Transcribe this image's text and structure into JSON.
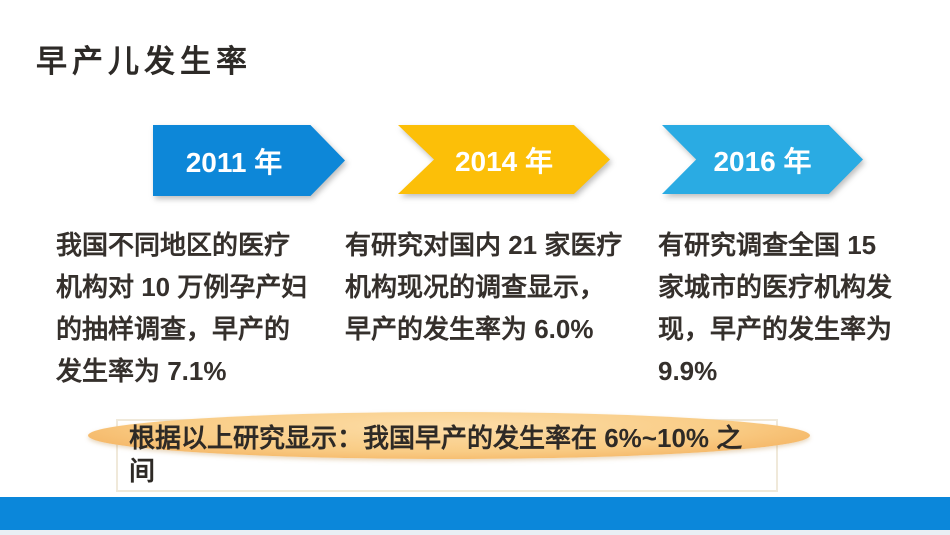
{
  "title": "早产儿发生率",
  "timeline": [
    {
      "year": "2011 年",
      "arrow_color": "#0d87d8",
      "lines": [
        "我国不同地区的医疗",
        "机构对 10 万例孕产妇",
        "的抽样调查，早产的",
        "发生率为 7.1%"
      ]
    },
    {
      "year": "2014 年",
      "arrow_color": "#fcbf08",
      "lines": [
        "有研究对国内 21 家医疗",
        "机构现况的调查显示，",
        "早产的发生率为 6.0%"
      ]
    },
    {
      "year": "2016 年",
      "arrow_color": "#2aabe3",
      "lines": [
        "有研究调查全国 15",
        "家城市的医疗机构发",
        "现，早产的发生率为",
        "9.9%"
      ]
    }
  ],
  "summary": {
    "line1": "根据以上研究显示：我国早产的发生率在 6%~10% 之",
    "line2": "间",
    "ellipse_color_center": "#fcdda8",
    "ellipse_color_mid": "#f9cc85",
    "ellipse_color_edge": "#f2a64f"
  },
  "footer_bar_color": "#0b87da",
  "text_color": "#35302c"
}
